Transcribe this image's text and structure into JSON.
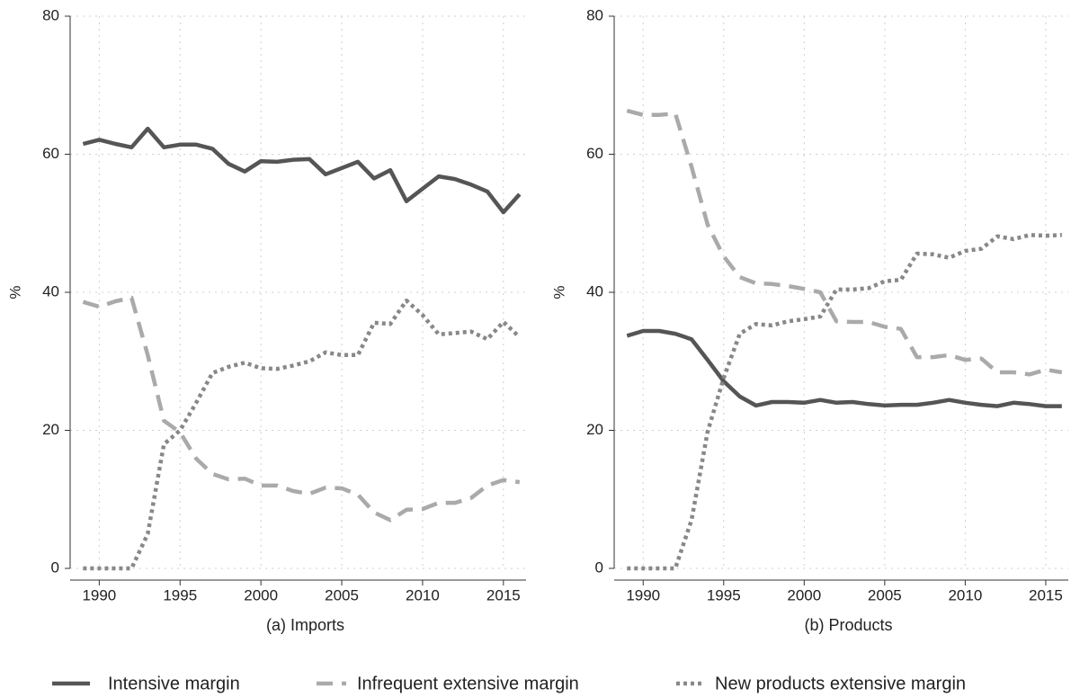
{
  "chart_data": [
    {
      "type": "line",
      "title": "(a) Imports",
      "ylabel": "%",
      "x": [
        1989,
        1990,
        1991,
        1992,
        1993,
        1994,
        1995,
        1996,
        1997,
        1998,
        1999,
        2000,
        2001,
        2002,
        2003,
        2004,
        2005,
        2006,
        2007,
        2008,
        2009,
        2010,
        2011,
        2012,
        2013,
        2014,
        2015,
        2016
      ],
      "xlim": [
        1988.2,
        2016.4
      ],
      "xticks": [
        1990,
        1995,
        2000,
        2005,
        2010,
        2015
      ],
      "ylim": [
        0,
        80
      ],
      "yticks": [
        0,
        20,
        40,
        60,
        80
      ],
      "grid": true,
      "series": [
        {
          "name": "Intensive margin",
          "color": "#555555",
          "style": "solid",
          "values": [
            61.5,
            62.1,
            61.5,
            61,
            63.7,
            61,
            61.4,
            61.4,
            60.8,
            58.6,
            57.5,
            59,
            58.9,
            59.2,
            59.3,
            57.1,
            58,
            58.9,
            56.5,
            57.7,
            53.2,
            55,
            56.8,
            56.4,
            55.6,
            54.6,
            51.6,
            54.2
          ]
        },
        {
          "name": "Infrequent extensive margin",
          "color": "#aaaaaa",
          "style": "dashed",
          "values": [
            38.6,
            37.9,
            38.7,
            39.2,
            30.9,
            21.4,
            19.7,
            15.9,
            13.7,
            12.9,
            13,
            12,
            12,
            11.2,
            10.8,
            11.7,
            11.6,
            10.7,
            8.1,
            7,
            8.5,
            8.6,
            9.5,
            9.5,
            10.2,
            12,
            12.8,
            12.5
          ]
        },
        {
          "name": "New products extensive margin",
          "color": "#888888",
          "style": "dotted",
          "values": [
            0,
            0,
            0,
            0,
            5,
            18,
            20,
            24,
            28.3,
            29.2,
            29.8,
            29,
            28.9,
            29.4,
            30,
            31.3,
            30.9,
            30.9,
            35.6,
            35.4,
            38.8,
            36.7,
            33.9,
            34.1,
            34.3,
            33.2,
            35.7,
            33.5
          ]
        }
      ]
    },
    {
      "type": "line",
      "title": "(b) Products",
      "ylabel": "%",
      "x": [
        1989,
        1990,
        1991,
        1992,
        1993,
        1994,
        1995,
        1996,
        1997,
        1998,
        1999,
        2000,
        2001,
        2002,
        2003,
        2004,
        2005,
        2006,
        2007,
        2008,
        2009,
        2010,
        2011,
        2012,
        2013,
        2014,
        2015,
        2016
      ],
      "xlim": [
        1988.2,
        2016.4
      ],
      "xticks": [
        1990,
        1995,
        2000,
        2005,
        2010,
        2015
      ],
      "ylim": [
        0,
        80
      ],
      "yticks": [
        0,
        20,
        40,
        60,
        80
      ],
      "grid": true,
      "series": [
        {
          "color": "#555555",
          "style": "solid",
          "values": [
            33.7,
            34.4,
            34.4,
            34,
            33.2,
            30.2,
            27.1,
            24.9,
            23.6,
            24.1,
            24.1,
            24,
            24.4,
            24,
            24.1,
            23.8,
            23.6,
            23.7,
            23.7,
            24,
            24.4,
            24,
            23.7,
            23.5,
            24,
            23.8,
            23.5,
            23.5
          ]
        },
        {
          "color": "#aaaaaa",
          "style": "dashed",
          "values": [
            66.3,
            65.7,
            65.7,
            65.9,
            58.2,
            49.8,
            45.2,
            42.2,
            41.3,
            41.2,
            40.9,
            40.5,
            40,
            35.8,
            35.7,
            35.7,
            35,
            34.7,
            30.6,
            30.6,
            30.9,
            30.2,
            30.4,
            28.4,
            28.4,
            28.1,
            28.8,
            28.4
          ]
        },
        {
          "color": "#888888",
          "style": "dotted",
          "values": [
            0,
            0,
            0,
            0,
            7,
            19.8,
            27.6,
            34,
            35.4,
            35.2,
            35.8,
            36.1,
            36.5,
            40.4,
            40.4,
            40.6,
            41.6,
            41.8,
            45.6,
            45.5,
            45,
            46,
            46.3,
            48.1,
            47.7,
            48.3,
            48.2,
            48.3
          ]
        }
      ]
    }
  ]
}
